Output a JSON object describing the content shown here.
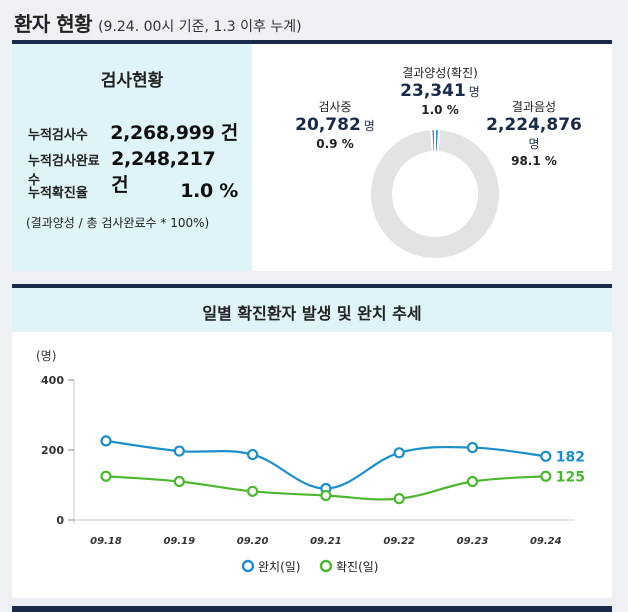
{
  "header": {
    "title": "환자 현황",
    "subtitle": "(9.24. 00시 기준, 1.3 이후 누계)"
  },
  "stats": {
    "title": "검사현황",
    "rows": [
      {
        "label": "누적검사수",
        "value": "2,268,999 건"
      },
      {
        "label": "누적검사완료수",
        "value": "2,248,217 건"
      },
      {
        "label": "누적확진율",
        "value": "1.0 %"
      }
    ],
    "note": "(결과양성 / 총 검사완료수 * 100%)"
  },
  "donut": {
    "segments": [
      {
        "name": "결과양성(확진)",
        "count": "23,341",
        "unit": "명",
        "pct": "1.0 %",
        "share": 1.0,
        "color": "#1a9be0"
      },
      {
        "name": "결과음성",
        "count": "2,224,876",
        "unit": "명",
        "pct": "98.1 %",
        "share": 98.1,
        "color": "#e3e3e3"
      },
      {
        "name": "검사중",
        "count": "20,782",
        "unit": "명",
        "pct": "0.9 %",
        "share": 0.9,
        "color": "#6e7e86"
      }
    ]
  },
  "chart_data": {
    "type": "line",
    "title": "일별 확진환자 발생 및 완치 추세",
    "ylabel": "(명)",
    "ylim": [
      0,
      400
    ],
    "yticks": [
      "0",
      "200",
      "400"
    ],
    "categories": [
      "09.18",
      "09.19",
      "09.20",
      "09.21",
      "09.22",
      "09.23",
      "09.24"
    ],
    "series": [
      {
        "name": "완치(일)",
        "color": "#1a8fca",
        "values": [
          226,
          197,
          187,
          90,
          192,
          207,
          182
        ],
        "end_label": "182"
      },
      {
        "name": "확진(일)",
        "color": "#4cb82f",
        "values": [
          125,
          110,
          82,
          70,
          61,
          110,
          125
        ],
        "end_label": "125"
      }
    ],
    "legend": "bottom"
  }
}
